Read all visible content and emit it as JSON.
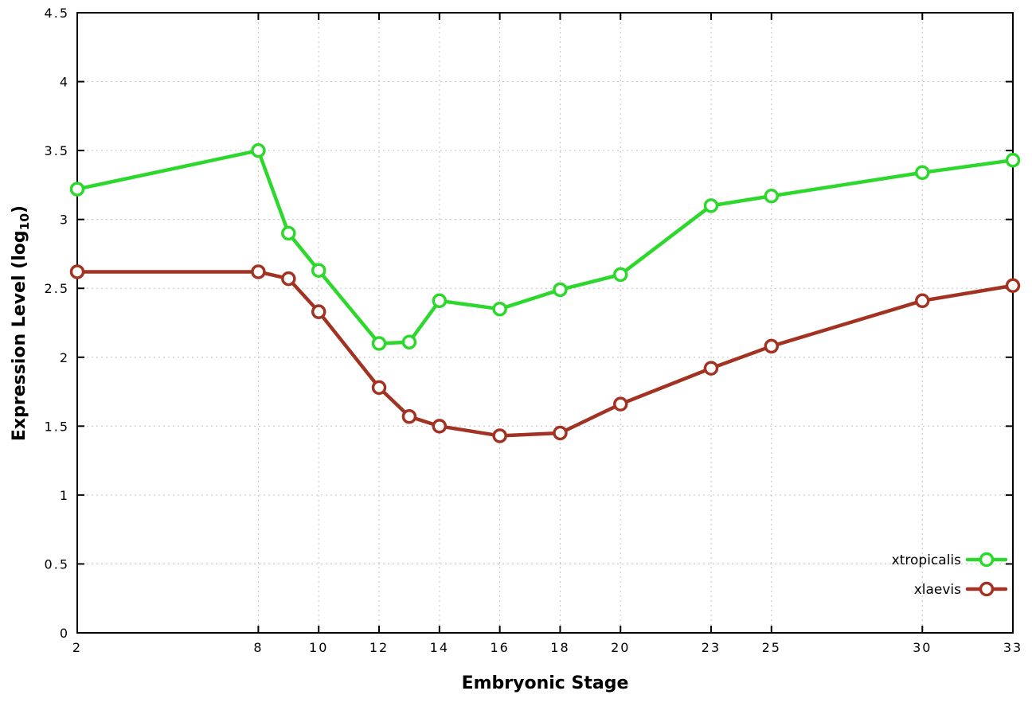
{
  "chart_data": {
    "type": "line",
    "title": "",
    "xlabel": "Embryonic Stage",
    "ylabel": {
      "prefix": "Expression Level (log",
      "sub": "10",
      "suffix": ")"
    },
    "xlim": [
      2,
      33
    ],
    "ylim": [
      0,
      4.5
    ],
    "grid": true,
    "legend_position": "bottom-right",
    "x": [
      2,
      8,
      9,
      10,
      12,
      13,
      14,
      16,
      18,
      20,
      23,
      25,
      30,
      33
    ],
    "xticks": [
      2,
      8,
      10,
      12,
      14,
      16,
      18,
      20,
      23,
      25,
      30,
      33
    ],
    "xtick_labels": [
      "2",
      "8",
      "10",
      "12",
      "14",
      "16",
      "18",
      "20",
      "23",
      "25",
      "30",
      "33"
    ],
    "yticks": [
      0,
      0.5,
      1,
      1.5,
      2,
      2.5,
      3,
      3.5,
      4,
      4.5
    ],
    "ytick_labels": [
      "0",
      "0.5",
      "1",
      "1.5",
      "2",
      "2.5",
      "3",
      "3.5",
      "4",
      "4.5"
    ],
    "series": [
      {
        "name": "xtropicalis",
        "color": "#2bd82b",
        "values": [
          3.22,
          3.5,
          2.9,
          2.63,
          2.1,
          2.11,
          2.41,
          2.35,
          2.49,
          2.6,
          3.1,
          3.17,
          3.34,
          3.43
        ]
      },
      {
        "name": "xlaevis",
        "color": "#a23222",
        "values": [
          2.62,
          2.62,
          2.57,
          2.33,
          1.78,
          1.57,
          1.5,
          1.43,
          1.45,
          1.66,
          1.92,
          2.08,
          2.41,
          2.52
        ]
      }
    ]
  },
  "colors": {
    "background": "#ffffff",
    "grid": "#c4c4c4",
    "axis": "#000000",
    "marker_fill": "#ffffff"
  }
}
